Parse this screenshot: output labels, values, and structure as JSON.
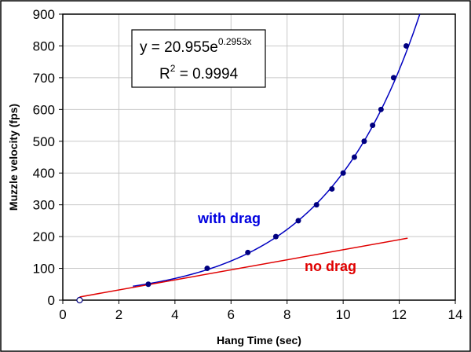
{
  "chart_data": {
    "type": "scatter",
    "xlabel": "Hang Time (sec)",
    "ylabel": "Muzzle velocity (fps)",
    "xlim": [
      0,
      14
    ],
    "ylim": [
      0,
      900
    ],
    "x_ticks": [
      "0",
      "2",
      "4",
      "6",
      "8",
      "10",
      "12",
      "14"
    ],
    "y_ticks": [
      "0",
      "100",
      "200",
      "300",
      "400",
      "500",
      "600",
      "700",
      "800",
      "900"
    ],
    "grid": true,
    "series": [
      {
        "name": "with drag",
        "color": "#0000c0",
        "points": [
          {
            "x": 0.6,
            "y": 0,
            "marker": "open"
          },
          {
            "x": 3.05,
            "y": 50
          },
          {
            "x": 5.15,
            "y": 100
          },
          {
            "x": 6.6,
            "y": 150
          },
          {
            "x": 7.6,
            "y": 200
          },
          {
            "x": 8.4,
            "y": 250
          },
          {
            "x": 9.05,
            "y": 300
          },
          {
            "x": 9.6,
            "y": 350
          },
          {
            "x": 10.0,
            "y": 400
          },
          {
            "x": 10.4,
            "y": 450
          },
          {
            "x": 10.75,
            "y": 500
          },
          {
            "x": 11.05,
            "y": 550
          },
          {
            "x": 11.35,
            "y": 600
          },
          {
            "x": 11.8,
            "y": 700
          },
          {
            "x": 12.25,
            "y": 800
          }
        ],
        "trendline": {
          "type": "exponential",
          "a": 20.955,
          "b": 0.2953,
          "x_range": [
            2.5,
            12.75
          ]
        }
      },
      {
        "name": "no drag",
        "color": "#e00000",
        "line": [
          {
            "x": 0.6,
            "y": 10
          },
          {
            "x": 12.3,
            "y": 195
          }
        ]
      }
    ],
    "annotations": {
      "equation_prefix": "y = 20.955e",
      "equation_exponent": "0.2953x",
      "r2_prefix": "R",
      "r2_sup": "2",
      "r2_value": " = 0.9994",
      "with_drag_label": "with drag",
      "no_drag_label": "no drag"
    }
  }
}
